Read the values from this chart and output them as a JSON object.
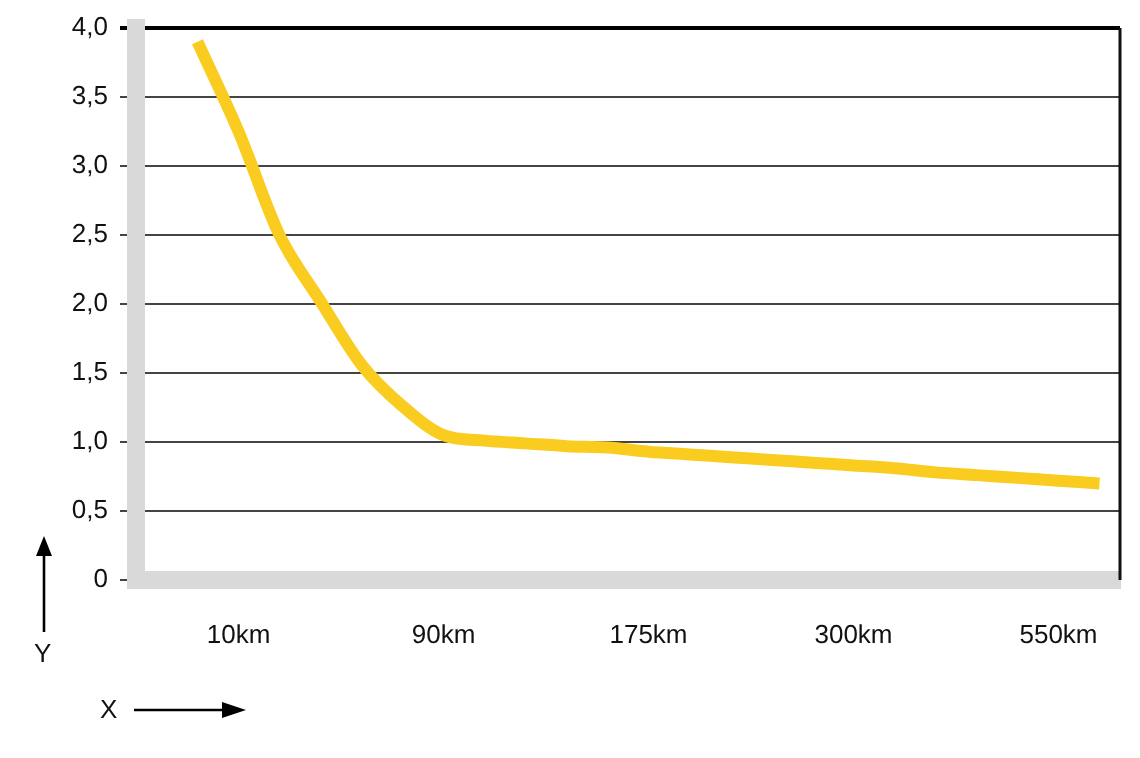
{
  "chart_data": {
    "type": "line",
    "xlabel": "X",
    "ylabel": "Y",
    "categories": [
      null,
      "10km",
      null,
      null,
      null,
      null,
      "90km",
      null,
      null,
      null,
      null,
      "175km",
      null,
      null,
      null,
      null,
      "300km",
      null,
      null,
      null,
      null,
      "550km",
      null
    ],
    "series": [
      {
        "color": "#f9cc1f",
        "values": [
          3.9,
          3.25,
          2.5,
          2.02,
          1.56,
          1.26,
          1.05,
          1.01,
          0.99,
          0.97,
          0.96,
          0.93,
          0.91,
          0.89,
          0.87,
          0.85,
          0.83,
          0.81,
          0.78,
          0.76,
          0.74,
          0.72,
          0.7
        ]
      }
    ],
    "ylim": [
      0,
      4
    ],
    "yticks": [
      0,
      {
        "value": 0.5,
        "label": "0,5"
      },
      {
        "value": 1,
        "label": "1,0"
      },
      {
        "value": 1.5,
        "label": "1,5"
      },
      {
        "value": 2,
        "label": "2,0"
      },
      {
        "value": 2.5,
        "label": "2,5"
      },
      {
        "value": 3,
        "label": "3,0"
      },
      {
        "value": 3.5,
        "label": "3,5"
      },
      {
        "value": 4,
        "label": "4,0"
      }
    ],
    "grid": "y",
    "marker": "none",
    "line_style": "solid"
  }
}
